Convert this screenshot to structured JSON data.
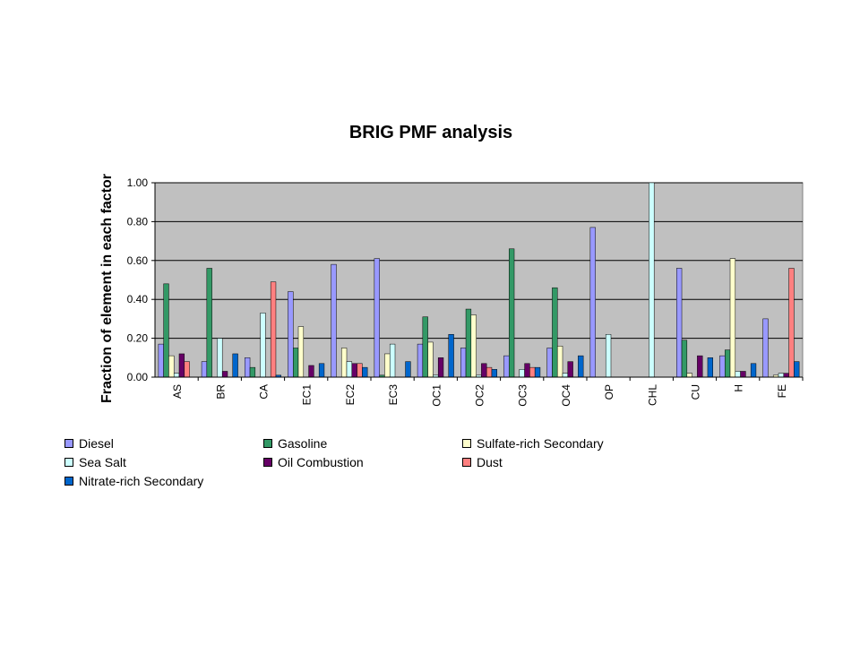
{
  "chart_data": {
    "type": "bar",
    "title": "BRIG PMF analysis",
    "xlabel": "",
    "ylabel": "Fraction of element in each factor",
    "ylim": [
      0,
      1.0
    ],
    "yticks": [
      "0.00",
      "0.20",
      "0.40",
      "0.60",
      "0.80",
      "1.00"
    ],
    "grid": true,
    "legend_position": "bottom",
    "categories": [
      "AS",
      "BR",
      "CA",
      "EC1",
      "EC2",
      "EC3",
      "OC1",
      "OC2",
      "OC3",
      "OC4",
      "OP",
      "CHL",
      "CU",
      "H",
      "FE"
    ],
    "series": [
      {
        "name": "Diesel",
        "color": "#9999FF",
        "values": [
          0.17,
          0.08,
          0.1,
          0.44,
          0.58,
          0.61,
          0.17,
          0.15,
          0.11,
          0.15,
          0.77,
          0.0,
          0.56,
          0.11,
          0.3
        ]
      },
      {
        "name": "Gasoline",
        "color": "#339966",
        "values": [
          0.48,
          0.56,
          0.05,
          0.15,
          0.0,
          0.01,
          0.31,
          0.35,
          0.66,
          0.46,
          0.0,
          0.0,
          0.19,
          0.14,
          0.0
        ]
      },
      {
        "name": "Sulfate-rich Secondary",
        "color": "#FFFFCC",
        "values": [
          0.11,
          0.0,
          0.0,
          0.26,
          0.15,
          0.12,
          0.18,
          0.32,
          0.0,
          0.16,
          0.0,
          0.0,
          0.02,
          0.61,
          0.01
        ]
      },
      {
        "name": "Sea Salt",
        "color": "#CCFFFF",
        "values": [
          0.02,
          0.2,
          0.33,
          0.0,
          0.08,
          0.17,
          0.01,
          0.01,
          0.04,
          0.02,
          0.22,
          1.0,
          0.0,
          0.03,
          0.02
        ]
      },
      {
        "name": "Oil Combustion",
        "color": "#660066",
        "values": [
          0.12,
          0.03,
          0.0,
          0.06,
          0.07,
          0.0,
          0.1,
          0.07,
          0.07,
          0.08,
          0.0,
          0.0,
          0.11,
          0.03,
          0.02
        ]
      },
      {
        "name": "Dust",
        "color": "#FF8080",
        "values": [
          0.08,
          0.0,
          0.49,
          0.0,
          0.07,
          0.0,
          0.0,
          0.05,
          0.05,
          0.0,
          0.0,
          0.0,
          0.0,
          0.0,
          0.56
        ]
      },
      {
        "name": "Nitrate-rich Secondary",
        "color": "#0066CC",
        "values": [
          0.0,
          0.12,
          0.01,
          0.07,
          0.05,
          0.08,
          0.22,
          0.04,
          0.05,
          0.11,
          0.0,
          0.0,
          0.1,
          0.07,
          0.08
        ]
      }
    ],
    "colors": {
      "plot_background": "#C0C0C0",
      "gridline": "#000000"
    }
  }
}
